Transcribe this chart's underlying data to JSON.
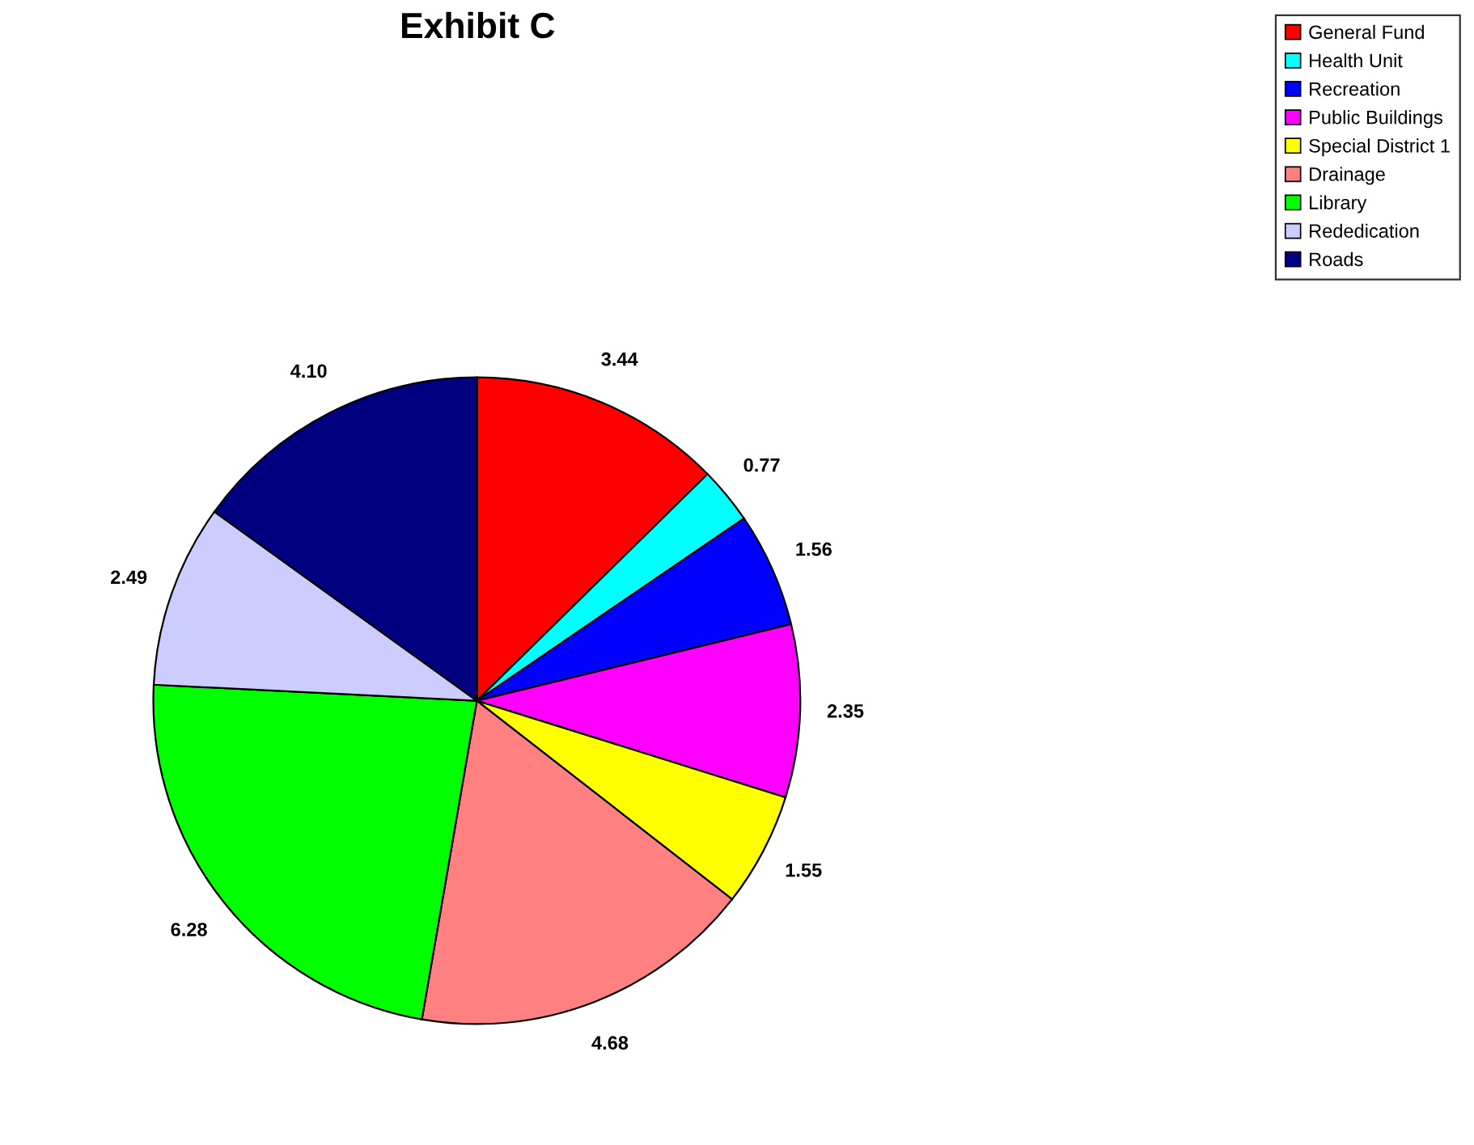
{
  "chart_data": {
    "type": "pie",
    "title": "Exhibit C",
    "categories": [
      "General Fund",
      "Health Unit",
      "Recreation",
      "Public Buildings",
      "Special District 1",
      "Drainage",
      "Library",
      "Rededication",
      "Roads"
    ],
    "values": [
      3.44,
      0.77,
      1.56,
      2.35,
      1.55,
      4.68,
      6.28,
      2.49,
      4.1
    ],
    "colors": [
      "#ff0000",
      "#00ffff",
      "#0000ff",
      "#ff00ff",
      "#ffff00",
      "#ff8080",
      "#00ff00",
      "#ccccff",
      "#000080"
    ],
    "value_labels": [
      "3.44",
      "0.77",
      "1.56",
      "2.35",
      "1.55",
      "4.68",
      "6.28",
      "2.49",
      "4.10"
    ],
    "legend": "top right"
  }
}
